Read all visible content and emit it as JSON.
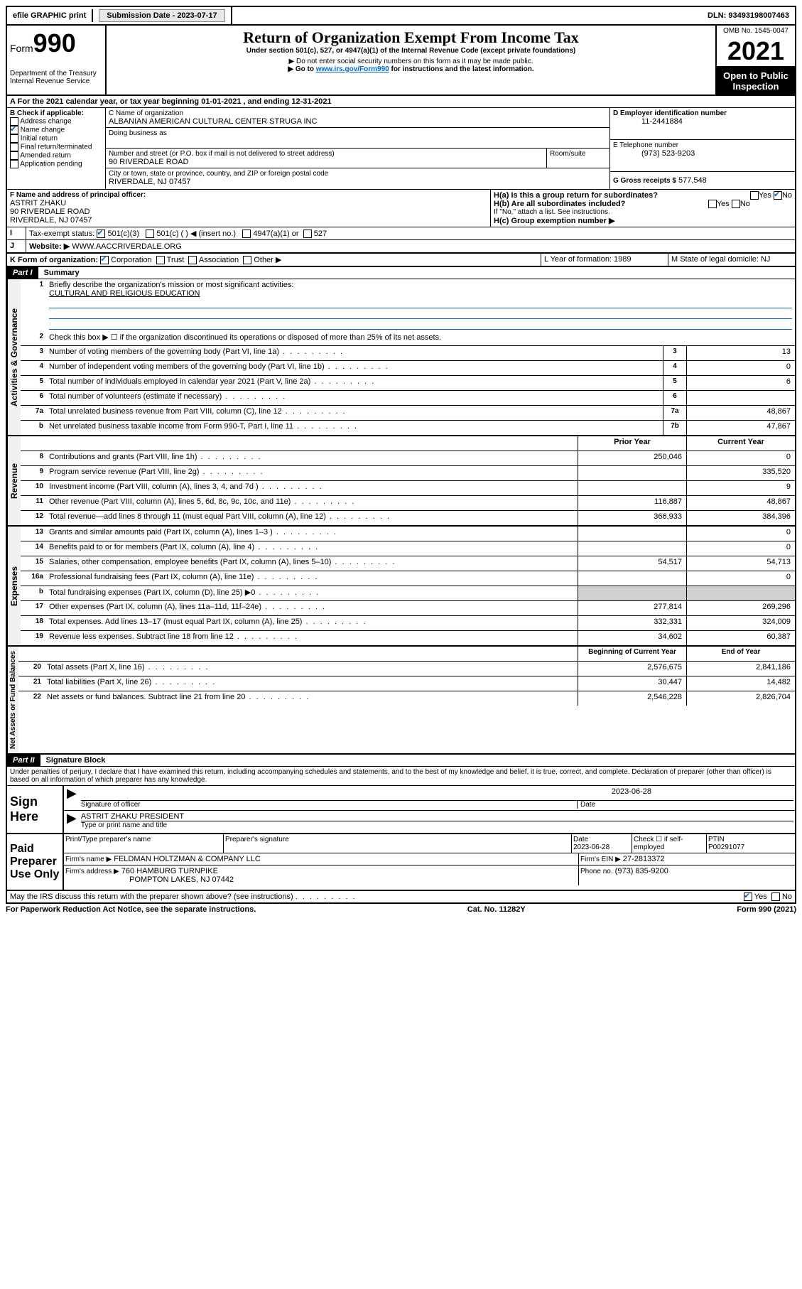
{
  "topbar": {
    "efile": "efile GRAPHIC print",
    "submission_label": "Submission Date - 2023-07-17",
    "dln": "DLN: 93493198007463"
  },
  "header": {
    "form_word": "Form",
    "form_number": "990",
    "dept": "Department of the Treasury",
    "irs": "Internal Revenue Service",
    "title": "Return of Organization Exempt From Income Tax",
    "subtitle": "Under section 501(c), 527, or 4947(a)(1) of the Internal Revenue Code (except private foundations)",
    "note1": "▶ Do not enter social security numbers on this form as it may be made public.",
    "note2_pre": "▶ Go to ",
    "note2_link": "www.irs.gov/Form990",
    "note2_post": " for instructions and the latest information.",
    "omb": "OMB No. 1545-0047",
    "year": "2021",
    "open_public": "Open to Public Inspection"
  },
  "sectionA": {
    "cal_year": "For the 2021 calendar year, or tax year beginning 01-01-2021   , and ending 12-31-2021",
    "b_label": "B Check if applicable:",
    "b_items": [
      "Address change",
      "Name change",
      "Initial return",
      "Final return/terminated",
      "Amended return",
      "Application pending"
    ],
    "c_label": "C Name of organization",
    "org_name": "ALBANIAN AMERICAN CULTURAL CENTER STRUGA INC",
    "dba_label": "Doing business as",
    "addr_label": "Number and street (or P.O. box if mail is not delivered to street address)",
    "room_label": "Room/suite",
    "street": "90 RIVERDALE ROAD",
    "city_label": "City or town, state or province, country, and ZIP or foreign postal code",
    "city": "RIVERDALE, NJ  07457",
    "d_label": "D Employer identification number",
    "ein": "11-2441884",
    "e_label": "E Telephone number",
    "phone": "(973) 523-9203",
    "g_label": "G Gross receipts $",
    "g_val": "577,548",
    "f_label": "F Name and address of principal officer:",
    "officer_name": "ASTRIT ZHAKU",
    "officer_addr1": "90 RIVERDALE ROAD",
    "officer_addr2": "RIVERDALE, NJ  07457",
    "ha_label": "H(a)  Is this a group return for subordinates?",
    "hb_label": "H(b)  Are all subordinates included?",
    "h_note": "If \"No,\" attach a list. See instructions.",
    "hc_label": "H(c)  Group exemption number ▶",
    "i_label": "Tax-exempt status:",
    "i_501c3": "501(c)(3)",
    "i_501c": "501(c) (  ) ◀ (insert no.)",
    "i_4947": "4947(a)(1) or",
    "i_527": "527",
    "j_label": "Website: ▶",
    "website": "WWW.AACCRIVERDALE.ORG",
    "k_label": "K Form of organization:",
    "k_corp": "Corporation",
    "k_trust": "Trust",
    "k_assoc": "Association",
    "k_other": "Other ▶",
    "l_label": "L Year of formation: 1989",
    "m_label": "M State of legal domicile: NJ",
    "yes": "Yes",
    "no": "No"
  },
  "part1": {
    "header": "Part I",
    "title": "Summary",
    "l1_label": "Briefly describe the organization's mission or most significant activities:",
    "l1_text": "CULTURAL AND RELIGIOUS EDUCATION",
    "l2_label": "Check this box ▶ ☐  if the organization discontinued its operations or disposed of more than 25% of its net assets.",
    "governance_label": "Activities & Governance",
    "revenue_label": "Revenue",
    "expenses_label": "Expenses",
    "netassets_label": "Net Assets or Fund Balances",
    "lines_gov": [
      {
        "n": "3",
        "d": "Number of voting members of the governing body (Part VI, line 1a)",
        "box": "3",
        "v": "13"
      },
      {
        "n": "4",
        "d": "Number of independent voting members of the governing body (Part VI, line 1b)",
        "box": "4",
        "v": "0"
      },
      {
        "n": "5",
        "d": "Total number of individuals employed in calendar year 2021 (Part V, line 2a)",
        "box": "5",
        "v": "6"
      },
      {
        "n": "6",
        "d": "Total number of volunteers (estimate if necessary)",
        "box": "6",
        "v": ""
      },
      {
        "n": "7a",
        "d": "Total unrelated business revenue from Part VIII, column (C), line 12",
        "box": "7a",
        "v": "48,867"
      },
      {
        "n": "b",
        "d": "Net unrelated business taxable income from Form 990-T, Part I, line 11",
        "box": "7b",
        "v": "47,867"
      }
    ],
    "col_head_prior": "Prior Year",
    "col_head_current": "Current Year",
    "lines_rev": [
      {
        "n": "8",
        "d": "Contributions and grants (Part VIII, line 1h)",
        "p": "250,046",
        "c": "0"
      },
      {
        "n": "9",
        "d": "Program service revenue (Part VIII, line 2g)",
        "p": "",
        "c": "335,520"
      },
      {
        "n": "10",
        "d": "Investment income (Part VIII, column (A), lines 3, 4, and 7d )",
        "p": "",
        "c": "9"
      },
      {
        "n": "11",
        "d": "Other revenue (Part VIII, column (A), lines 5, 6d, 8c, 9c, 10c, and 11e)",
        "p": "116,887",
        "c": "48,867"
      },
      {
        "n": "12",
        "d": "Total revenue—add lines 8 through 11 (must equal Part VIII, column (A), line 12)",
        "p": "366,933",
        "c": "384,396"
      }
    ],
    "lines_exp": [
      {
        "n": "13",
        "d": "Grants and similar amounts paid (Part IX, column (A), lines 1–3 )",
        "p": "",
        "c": "0"
      },
      {
        "n": "14",
        "d": "Benefits paid to or for members (Part IX, column (A), line 4)",
        "p": "",
        "c": "0"
      },
      {
        "n": "15",
        "d": "Salaries, other compensation, employee benefits (Part IX, column (A), lines 5–10)",
        "p": "54,517",
        "c": "54,713"
      },
      {
        "n": "16a",
        "d": "Professional fundraising fees (Part IX, column (A), line 11e)",
        "p": "",
        "c": "0"
      },
      {
        "n": "b",
        "d": "Total fundraising expenses (Part IX, column (D), line 25) ▶0",
        "p": "shaded",
        "c": "shaded"
      },
      {
        "n": "17",
        "d": "Other expenses (Part IX, column (A), lines 11a–11d, 11f–24e)",
        "p": "277,814",
        "c": "269,296"
      },
      {
        "n": "18",
        "d": "Total expenses. Add lines 13–17 (must equal Part IX, column (A), line 25)",
        "p": "332,331",
        "c": "324,009"
      },
      {
        "n": "19",
        "d": "Revenue less expenses. Subtract line 18 from line 12",
        "p": "34,602",
        "c": "60,387"
      }
    ],
    "col_head_begin": "Beginning of Current Year",
    "col_head_end": "End of Year",
    "lines_net": [
      {
        "n": "20",
        "d": "Total assets (Part X, line 16)",
        "p": "2,576,675",
        "c": "2,841,186"
      },
      {
        "n": "21",
        "d": "Total liabilities (Part X, line 26)",
        "p": "30,447",
        "c": "14,482"
      },
      {
        "n": "22",
        "d": "Net assets or fund balances. Subtract line 21 from line 20",
        "p": "2,546,228",
        "c": "2,826,704"
      }
    ]
  },
  "part2": {
    "header": "Part II",
    "title": "Signature Block",
    "declaration": "Under penalties of perjury, I declare that I have examined this return, including accompanying schedules and statements, and to the best of my knowledge and belief, it is true, correct, and complete. Declaration of preparer (other than officer) is based on all information of which preparer has any knowledge.",
    "sign_here": "Sign Here",
    "sig_date": "2023-06-28",
    "sig_of_officer": "Signature of officer",
    "date_label": "Date",
    "officer_sig": "ASTRIT ZHAKU  PRESIDENT",
    "type_name": "Type or print name and title",
    "paid_prep": "Paid Preparer Use Only",
    "prep_name_label": "Print/Type preparer's name",
    "prep_sig_label": "Preparer's signature",
    "prep_date": "2023-06-28",
    "check_if": "Check ☐ if self-employed",
    "ptin_label": "PTIN",
    "ptin": "P00291077",
    "firm_name_label": "Firm's name    ▶",
    "firm_name": "FELDMAN HOLTZMAN & COMPANY LLC",
    "firm_ein_label": "Firm's EIN ▶",
    "firm_ein": "27-2813372",
    "firm_addr_label": "Firm's address ▶",
    "firm_addr1": "760 HAMBURG TURNPIKE",
    "firm_addr2": "POMPTON LAKES, NJ  07442",
    "phone_label": "Phone no.",
    "firm_phone": "(973) 835-9200",
    "may_irs": "May the IRS discuss this return with the preparer shown above? (see instructions)"
  },
  "footer": {
    "paperwork": "For Paperwork Reduction Act Notice, see the separate instructions.",
    "catno": "Cat. No. 11282Y",
    "formid": "Form 990 (2021)"
  }
}
